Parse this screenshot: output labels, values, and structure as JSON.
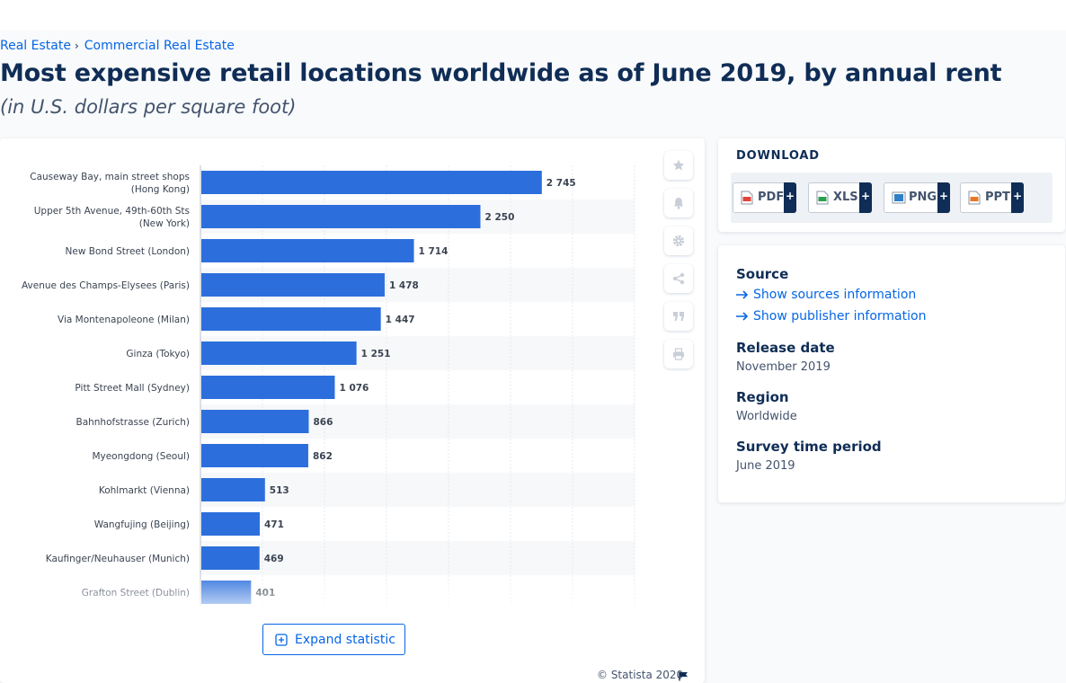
{
  "breadcrumb": {
    "items": [
      "Real Estate",
      "Commercial Real Estate"
    ]
  },
  "page": {
    "title": "Most expensive retail locations worldwide as of June 2019, by annual rent",
    "subtitle": "(in U.S. dollars per square foot)"
  },
  "chart_data": {
    "type": "bar",
    "orientation": "horizontal",
    "categories": [
      [
        "Causeway Bay, main street shops",
        "(Hong Kong)"
      ],
      [
        "Upper 5th Avenue, 49th-60th Sts",
        "(New York)"
      ],
      [
        "New Bond Street (London)"
      ],
      [
        "Avenue des Champs-Elysees (Paris)"
      ],
      [
        "Via Montenapoleone (Milan)"
      ],
      [
        "Ginza (Tokyo)"
      ],
      [
        "Pitt Street Mall (Sydney)"
      ],
      [
        "Bahnhofstrasse (Zurich)"
      ],
      [
        "Myeongdong (Seoul)"
      ],
      [
        "Kohlmarkt (Vienna)"
      ],
      [
        "Wangfujing (Beijing)"
      ],
      [
        "Kaufinger/Neuhauser (Munich)"
      ],
      [
        "Grafton Street (Dublin)"
      ]
    ],
    "values": [
      2745,
      2250,
      1714,
      1478,
      1447,
      1251,
      1076,
      866,
      862,
      513,
      471,
      469,
      401
    ],
    "value_labels": [
      "2 745",
      "2 250",
      "1 714",
      "1 478",
      "1 447",
      "1 251",
      "1 076",
      "866",
      "862",
      "513",
      "471",
      "469",
      "401"
    ],
    "xlim": [
      0,
      3500
    ],
    "grid": true,
    "bar_color": "#2c6fdc",
    "faded_last_row": true
  },
  "toolbar": {
    "icons": [
      "star-icon",
      "bell-icon",
      "gear-icon",
      "share-icon",
      "quote-icon",
      "print-icon"
    ]
  },
  "chart_footer": {
    "expand_label": "Expand statistic",
    "copyright": "© Statista 2020"
  },
  "download": {
    "title": "DOWNLOAD",
    "buttons": [
      {
        "label": "PDF",
        "color": "#e0443c"
      },
      {
        "label": "XLS",
        "color": "#2e9e4f"
      },
      {
        "label": "PNG",
        "color": "#2f80c8"
      },
      {
        "label": "PPT",
        "color": "#e6782a"
      }
    ]
  },
  "info": {
    "source_heading": "Source",
    "show_sources": "Show sources information",
    "show_publisher": "Show publisher information",
    "release_heading": "Release date",
    "release_value": "November 2019",
    "region_heading": "Region",
    "region_value": "Worldwide",
    "period_heading": "Survey time period",
    "period_value": "June 2019"
  },
  "colors": {
    "accent": "#0666e5",
    "navy": "#0f2d56"
  }
}
